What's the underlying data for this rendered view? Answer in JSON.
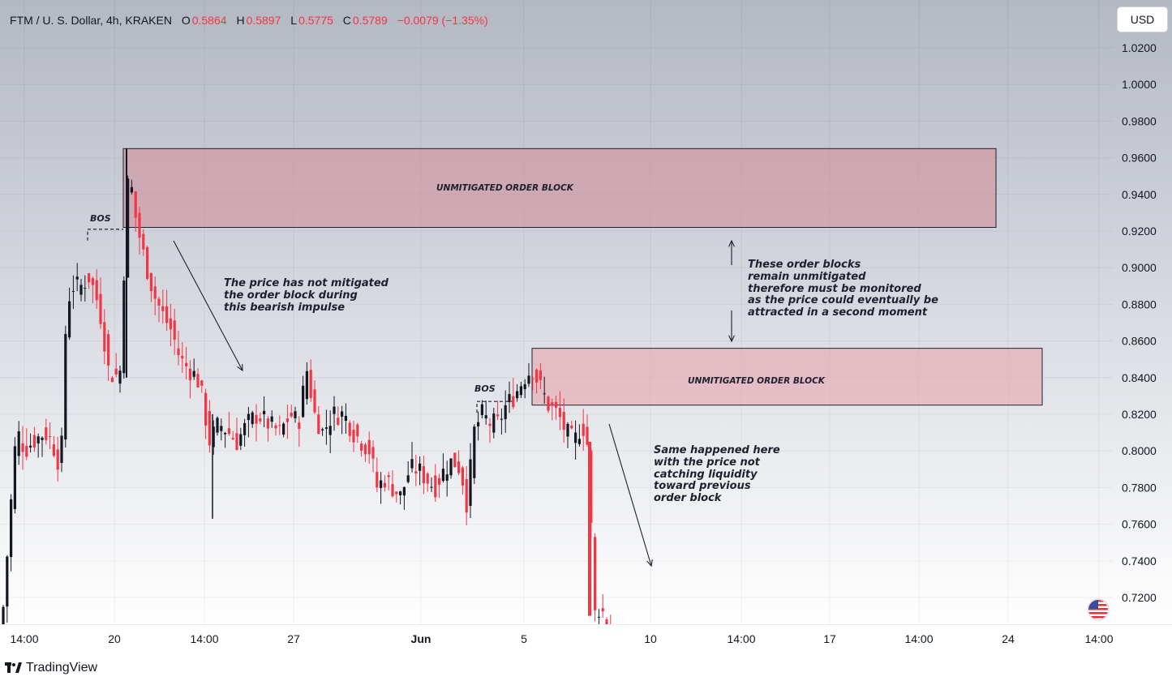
{
  "header": {
    "symbol": "FTM / U. S. Dollar, 4h, KRAKEN",
    "o_label": "O",
    "o_value": "0.5864",
    "h_label": "H",
    "h_value": "0.5897",
    "l_label": "L",
    "l_value": "0.5775",
    "c_label": "C",
    "c_value": "0.5789",
    "change": "−0.0079 (−1.35%)"
  },
  "currency_button": "USD",
  "footer": {
    "brand": "TradingView"
  },
  "colors": {
    "bear": "#f23645",
    "bull": "#131722",
    "order_block": "#e07e8d"
  },
  "annotations": {
    "ob1_label": "UNMITIGATED ORDER BLOCK",
    "ob2_label": "UNMITIGATED ORDER BLOCK",
    "bos1": "BOS",
    "bos2": "BOS",
    "note1": [
      "The price has not mitigated",
      "the order block during",
      "this bearish impulse"
    ],
    "note2": [
      "These order blocks",
      "remain unmitigated",
      "therefore must be monitored",
      "as the price could eventually be",
      "attracted in a second moment"
    ],
    "note3": [
      "Same happened here",
      "with the price not",
      "catching liquidity",
      "toward previous",
      "order block"
    ]
  },
  "chart_data": {
    "type": "candlestick",
    "symbol": "FTM / U. S. Dollar",
    "interval": "4h",
    "exchange": "KRAKEN",
    "y_axis": {
      "ticks": [
        "1.0200",
        "1.0000",
        "0.9800",
        "0.9600",
        "0.9400",
        "0.9200",
        "0.9000",
        "0.8800",
        "0.8600",
        "0.8400",
        "0.8200",
        "0.8000",
        "0.7800",
        "0.7600",
        "0.7400",
        "0.7200"
      ],
      "range": [
        0.706,
        1.035
      ]
    },
    "x_axis": {
      "ticks": [
        "14:00",
        "20",
        "14:00",
        "27",
        "Jun",
        "5",
        "10",
        "14:00",
        "17",
        "14:00",
        "24",
        "14:00"
      ]
    },
    "order_blocks": [
      {
        "label": "UNMITIGATED ORDER BLOCK",
        "top": 0.965,
        "bottom": 0.922
      },
      {
        "label": "UNMITIGATED ORDER BLOCK",
        "top": 0.856,
        "bottom": 0.825
      }
    ],
    "bos_levels": [
      0.921,
      0.827
    ],
    "key_points": [
      {
        "time": "20 (start)",
        "price": 0.94,
        "note": "wick high ~0.965"
      },
      {
        "time": "27",
        "price": 0.85,
        "note": "local high"
      },
      {
        "time": "Jun 4",
        "price": 0.765,
        "note": "local low"
      },
      {
        "time": "Jun 5",
        "price": 0.853,
        "note": "local high"
      },
      {
        "time": "Jun 7",
        "price": 0.706,
        "note": "sharp drop"
      }
    ]
  }
}
